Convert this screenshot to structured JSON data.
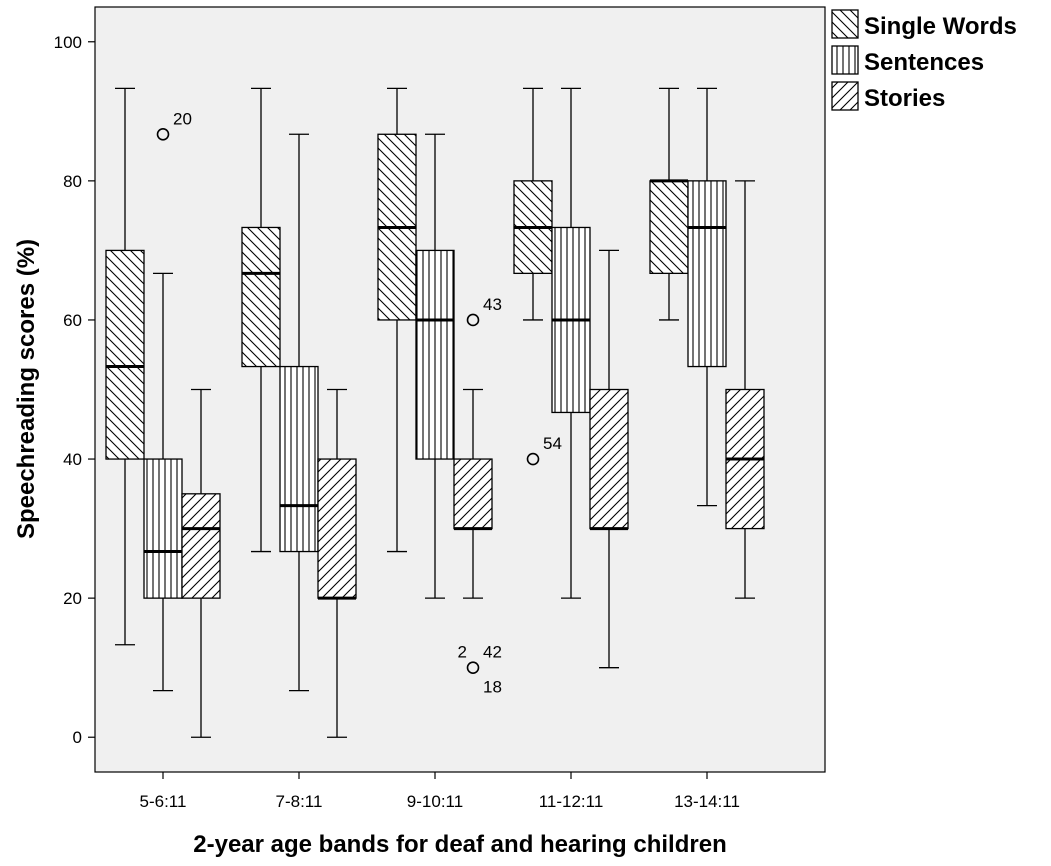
{
  "chart_data": {
    "type": "boxplot",
    "xlabel": "2-year age bands for deaf and hearing children",
    "ylabel": "Speechreading scores (%)",
    "ylim": [
      -5,
      105
    ],
    "yticks": [
      0,
      20,
      40,
      60,
      80,
      100
    ],
    "grid": false,
    "legend_position": "outside-right-top",
    "categories": [
      "5-6:11",
      "7-8:11",
      "9-10:11",
      "11-12:11",
      "13-14:11"
    ],
    "series": [
      {
        "name": "Single Words",
        "pattern": "diagonal-down",
        "boxes": [
          {
            "whisker_low": 13.3,
            "q1": 40,
            "median": 53.3,
            "q3": 70,
            "whisker_high": 93.3
          },
          {
            "whisker_low": 26.7,
            "q1": 53.3,
            "median": 66.7,
            "q3": 73.3,
            "whisker_high": 93.3
          },
          {
            "whisker_low": 26.7,
            "q1": 60,
            "median": 73.3,
            "q3": 86.7,
            "whisker_high": 93.3
          },
          {
            "whisker_low": 60,
            "q1": 66.7,
            "median": 73.3,
            "q3": 80,
            "whisker_high": 93.3
          },
          {
            "whisker_low": 60,
            "q1": 66.7,
            "median": 80,
            "q3": 80,
            "whisker_high": 93.3
          }
        ]
      },
      {
        "name": "Sentences",
        "pattern": "vertical",
        "boxes": [
          {
            "whisker_low": 6.7,
            "q1": 20,
            "median": 26.7,
            "q3": 40,
            "whisker_high": 66.7
          },
          {
            "whisker_low": 6.7,
            "q1": 26.7,
            "median": 33.3,
            "q3": 53.3,
            "whisker_high": 86.7
          },
          {
            "whisker_low": 20,
            "q1": 40,
            "median": 60,
            "q3": 70,
            "whisker_high": 86.7
          },
          {
            "whisker_low": 20,
            "q1": 46.7,
            "median": 60,
            "q3": 73.3,
            "whisker_high": 93.3
          },
          {
            "whisker_low": 33.3,
            "q1": 53.3,
            "median": 73.3,
            "q3": 80,
            "whisker_high": 93.3
          }
        ]
      },
      {
        "name": "Stories",
        "pattern": "diagonal-up",
        "boxes": [
          {
            "whisker_low": 0,
            "q1": 20,
            "median": 30,
            "q3": 35,
            "whisker_high": 50
          },
          {
            "whisker_low": 0,
            "q1": 20,
            "median": 20,
            "q3": 40,
            "whisker_high": 50
          },
          {
            "whisker_low": 20,
            "q1": 30,
            "median": 30,
            "q3": 40,
            "whisker_high": 50
          },
          {
            "whisker_low": 10,
            "q1": 30,
            "median": 30,
            "q3": 50,
            "whisker_high": 70
          },
          {
            "whisker_low": 20,
            "q1": 30,
            "median": 40,
            "q3": 50,
            "whisker_high": 80
          }
        ]
      }
    ],
    "outliers": [
      {
        "category": "5-6:11",
        "series": "Sentences",
        "value": 86.7,
        "labels": [
          {
            "text": "20",
            "pos": "upper-right"
          }
        ]
      },
      {
        "category": "9-10:11",
        "series": "Stories",
        "value": 60,
        "labels": [
          {
            "text": "43",
            "pos": "upper-right"
          }
        ]
      },
      {
        "category": "9-10:11",
        "series": "Stories",
        "value": 10,
        "labels": [
          {
            "text": "2",
            "pos": "upper-left"
          },
          {
            "text": "42",
            "pos": "upper-right"
          },
          {
            "text": "18",
            "pos": "lower-right"
          }
        ]
      },
      {
        "category": "11-12:11",
        "series": "Single Words",
        "value": 40,
        "labels": [
          {
            "text": "54",
            "pos": "upper-right"
          }
        ]
      }
    ]
  }
}
